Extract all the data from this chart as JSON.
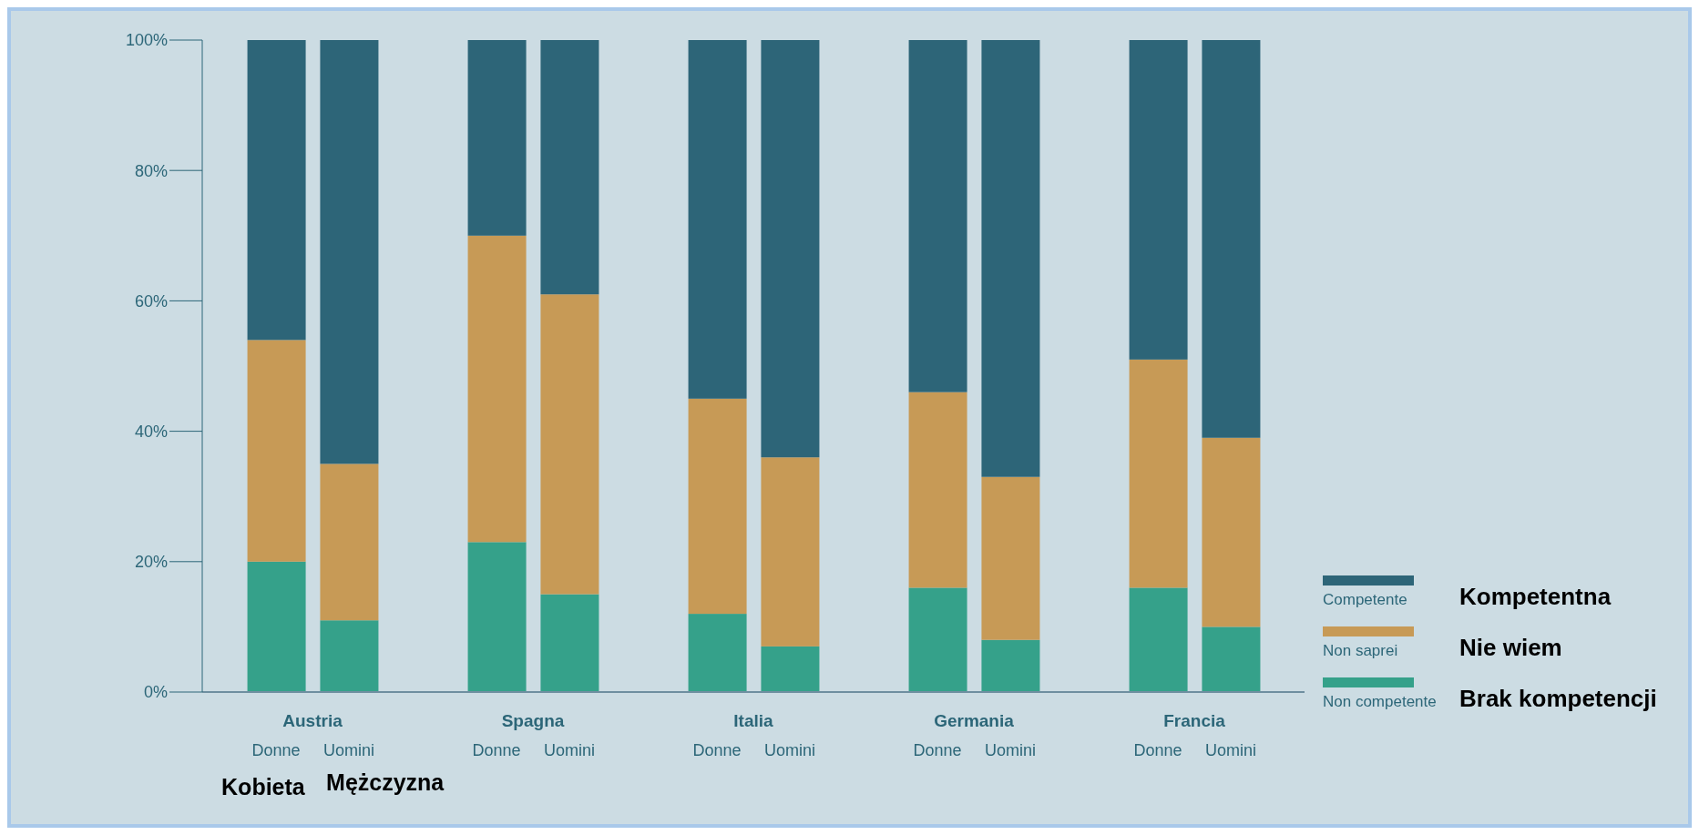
{
  "chart_data": {
    "type": "bar",
    "stacked": true,
    "categories": [
      "Donne",
      "Uomini",
      "Donne",
      "Uomini",
      "Donne",
      "Uomini",
      "Donne",
      "Uomini",
      "Donne",
      "Uomini"
    ],
    "series": [
      {
        "name": "Non competente",
        "color": "#35a18a",
        "values": [
          20,
          11,
          23,
          15,
          12,
          7,
          16,
          8,
          16,
          10
        ]
      },
      {
        "name": "Non saprei",
        "color": "#c79a56",
        "values": [
          34,
          24,
          47,
          46,
          33,
          29,
          30,
          25,
          35,
          29
        ]
      },
      {
        "name": "Competente",
        "color": "#2d6578",
        "values": [
          46,
          65,
          30,
          39,
          55,
          64,
          54,
          67,
          49,
          61
        ]
      }
    ],
    "ylim": [
      0,
      100
    ],
    "yticks": [
      {
        "value": 0,
        "label": "0%"
      },
      {
        "value": 20,
        "label": "20%"
      },
      {
        "value": 40,
        "label": "40%"
      },
      {
        "value": 60,
        "label": "60%"
      },
      {
        "value": 80,
        "label": "80%"
      },
      {
        "value": 100,
        "label": "100%"
      }
    ],
    "legend": "right",
    "annotations": [
      "Austria",
      "Spagna",
      "Italia",
      "Germania",
      "Francia",
      "Kobieta",
      "Mężczyzna",
      "Kompetentna",
      "Nie wiem",
      "Brak kompetencji"
    ]
  }
}
